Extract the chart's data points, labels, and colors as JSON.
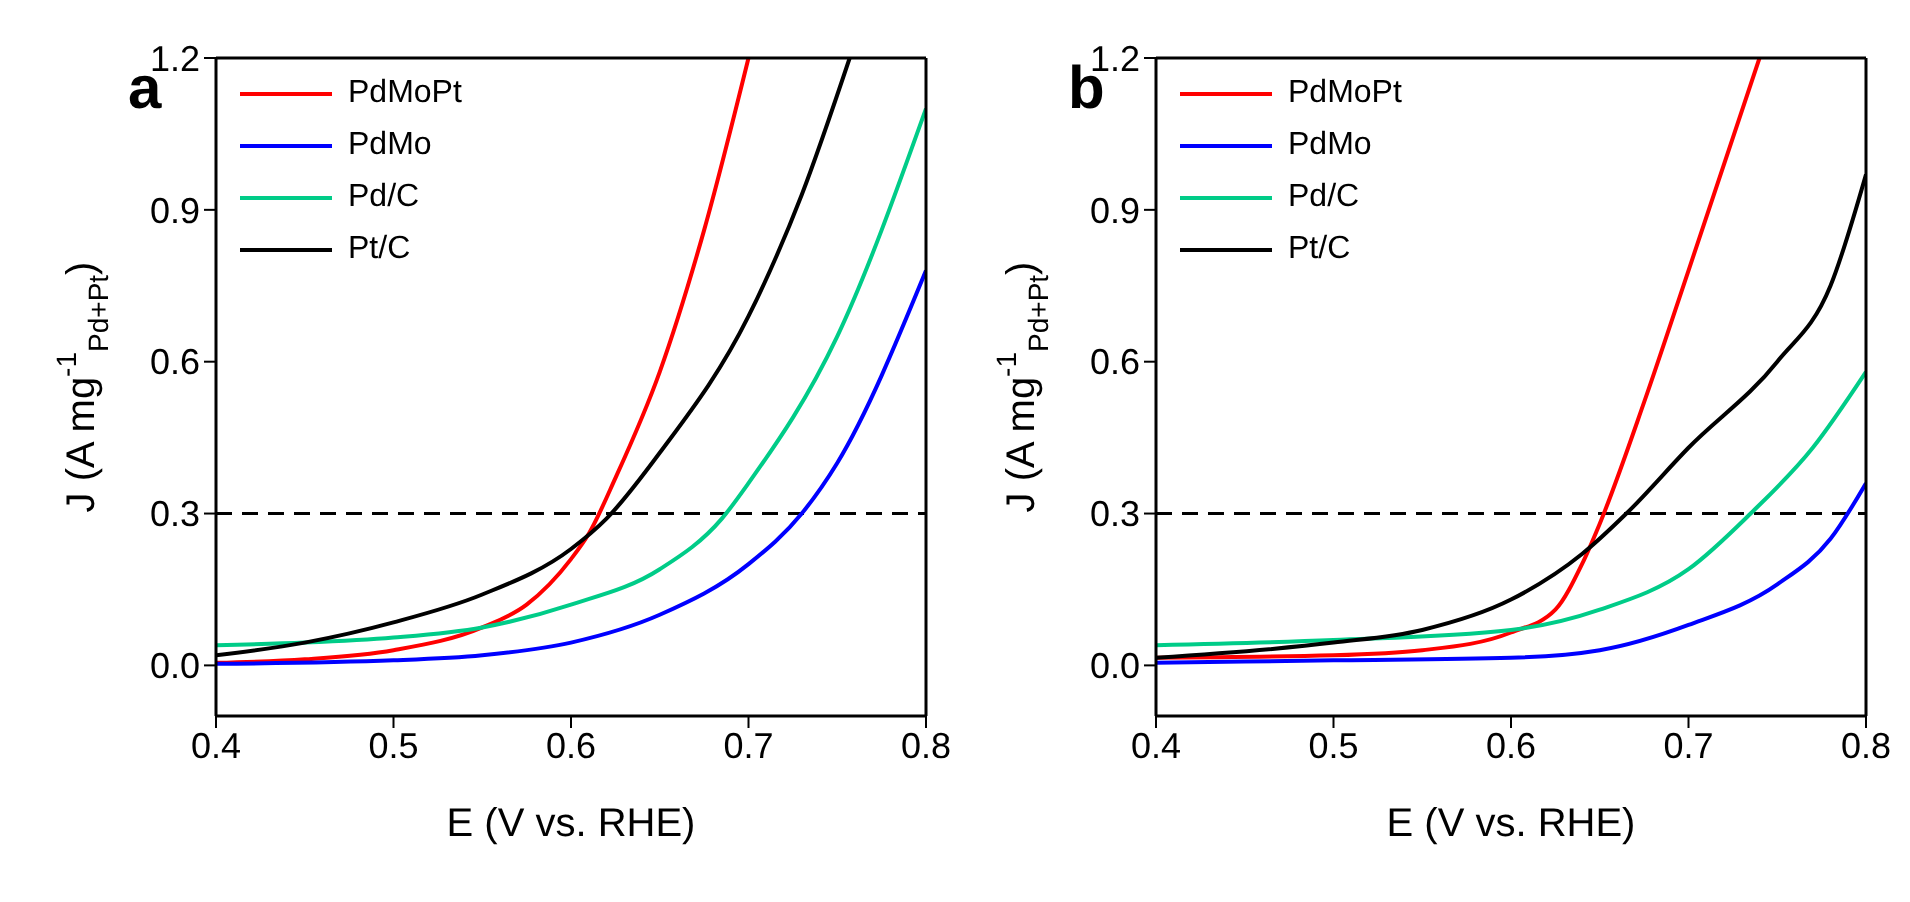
{
  "chart_data": [
    {
      "type": "line",
      "title": "a",
      "xlabel": "E (V vs. RHE)",
      "ylabel": "J (A mg$^{-1}$$_{Pd+Pt}$)",
      "xlim": [
        0.4,
        0.8
      ],
      "xticks": [
        0.4,
        0.5,
        0.6,
        0.7,
        0.8
      ],
      "ylim": [
        -0.1,
        1.2
      ],
      "yticks": [
        {
          "value": 0,
          "label": "0.0"
        },
        0.3,
        0.6,
        0.9,
        1.2
      ],
      "legend": "top left",
      "line_style": "solid",
      "ref_lines": [
        {
          "axis": "y",
          "value": 0.3,
          "color": "#000000",
          "line_style": "dashed"
        }
      ],
      "series": [
        {
          "name": "PdMoPt",
          "color": "#ff0000",
          "x": [
            0.4,
            0.45,
            0.5,
            0.55,
            0.575,
            0.6,
            0.61,
            0.625,
            0.65,
            0.675,
            0.7
          ],
          "values": [
            0.005,
            0.012,
            0.03,
            0.075,
            0.12,
            0.21,
            0.26,
            0.37,
            0.58,
            0.86,
            1.2
          ]
        },
        {
          "name": "PdMo",
          "color": "#0000ff",
          "x": [
            0.4,
            0.5,
            0.55,
            0.6,
            0.65,
            0.7,
            0.73,
            0.75,
            0.8
          ],
          "values": [
            0.003,
            0.01,
            0.02,
            0.045,
            0.1,
            0.2,
            0.3,
            0.4,
            0.78
          ]
        },
        {
          "name": "Pd/C",
          "color": "#00cc88",
          "x": [
            0.4,
            0.45,
            0.5,
            0.55,
            0.6,
            0.65,
            0.685,
            0.7,
            0.75,
            0.8
          ],
          "values": [
            0.04,
            0.045,
            0.055,
            0.075,
            0.12,
            0.19,
            0.29,
            0.36,
            0.65,
            1.1
          ]
        },
        {
          "name": "Pt/C",
          "color": "#000000",
          "x": [
            0.4,
            0.45,
            0.5,
            0.55,
            0.6,
            0.62,
            0.65,
            0.7,
            0.73,
            0.757
          ],
          "values": [
            0.02,
            0.045,
            0.085,
            0.14,
            0.23,
            0.29,
            0.42,
            0.69,
            0.93,
            1.2
          ]
        }
      ]
    },
    {
      "type": "line",
      "title": "b",
      "xlabel": "E (V vs. RHE)",
      "ylabel": "J (A mg$^{-1}$$_{Pd+Pt}$)",
      "xlim": [
        0.4,
        0.8
      ],
      "xticks": [
        0.4,
        0.5,
        0.6,
        0.7,
        0.8
      ],
      "ylim": [
        -0.1,
        1.2
      ],
      "yticks": [
        {
          "value": 0,
          "label": "0.0"
        },
        0.3,
        0.6,
        0.9,
        1.2
      ],
      "legend": "top left",
      "line_style": "solid",
      "ref_lines": [
        {
          "axis": "y",
          "value": 0.3,
          "color": "#000000",
          "line_style": "dashed"
        }
      ],
      "series": [
        {
          "name": "PdMoPt",
          "color": "#ff0000",
          "x": [
            0.4,
            0.5,
            0.55,
            0.6,
            0.625,
            0.64,
            0.65,
            0.675,
            0.7,
            0.74
          ],
          "values": [
            0.015,
            0.02,
            0.03,
            0.065,
            0.11,
            0.2,
            0.28,
            0.52,
            0.78,
            1.2
          ]
        },
        {
          "name": "PdMo",
          "color": "#0000ff",
          "x": [
            0.4,
            0.5,
            0.6,
            0.65,
            0.7,
            0.75,
            0.78,
            0.8
          ],
          "values": [
            0.005,
            0.01,
            0.015,
            0.03,
            0.08,
            0.16,
            0.25,
            0.36
          ]
        },
        {
          "name": "Pd/C",
          "color": "#00cc88",
          "x": [
            0.4,
            0.5,
            0.6,
            0.65,
            0.7,
            0.735,
            0.77,
            0.8
          ],
          "values": [
            0.04,
            0.05,
            0.07,
            0.11,
            0.19,
            0.3,
            0.43,
            0.58
          ]
        },
        {
          "name": "Pt/C",
          "color": "#000000",
          "x": [
            0.4,
            0.5,
            0.55,
            0.6,
            0.64,
            0.665,
            0.7,
            0.75,
            0.78,
            0.8
          ],
          "values": [
            0.015,
            0.045,
            0.07,
            0.13,
            0.22,
            0.3,
            0.43,
            0.6,
            0.75,
            0.97
          ]
        }
      ]
    }
  ]
}
